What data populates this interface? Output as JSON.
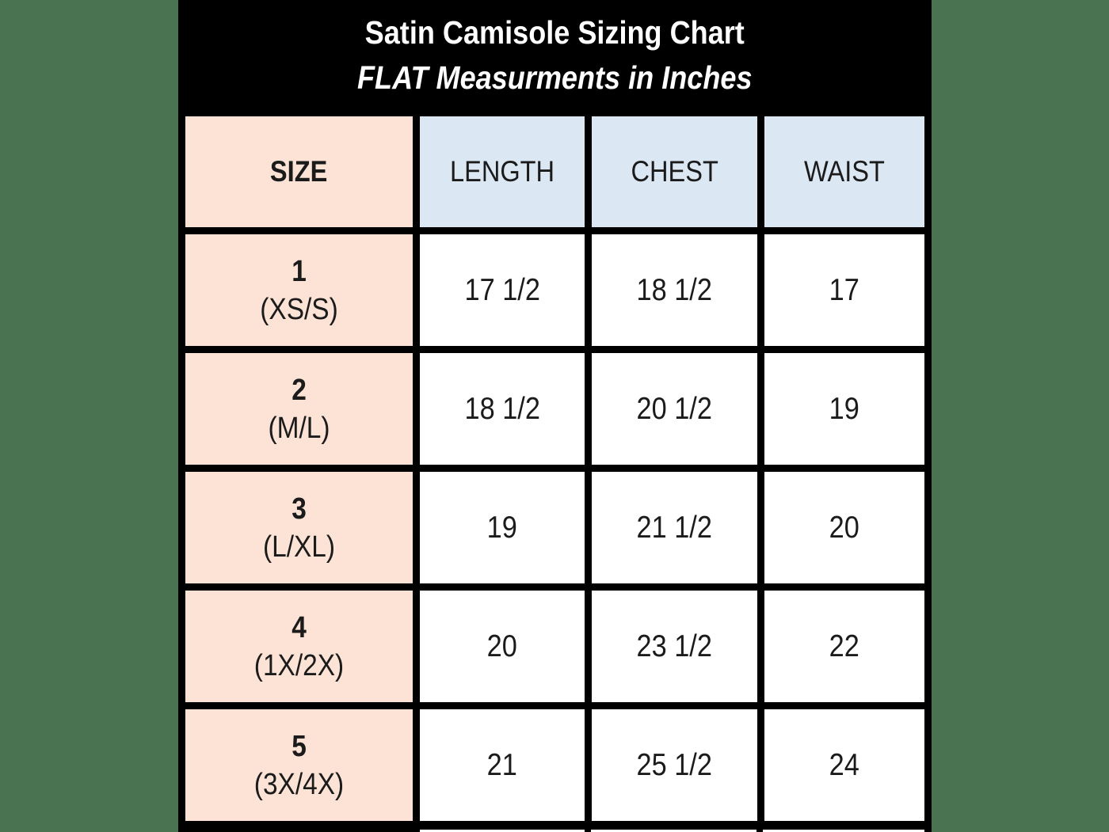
{
  "page": {
    "background_color": "#4a7351",
    "panel_background": "#000000",
    "title_text_color": "#ffffff",
    "cell_text_color": "#1b1b1b",
    "size_column_color": "#fce3d5",
    "header_column_color": "#dbe7f2",
    "value_cell_color": "#ffffff"
  },
  "chart_data": {
    "type": "table",
    "title": "Satin Camisole Sizing Chart",
    "subtitle": "FLAT Measurments in Inches",
    "columns": [
      "SIZE",
      "LENGTH",
      "CHEST",
      "WAIST"
    ],
    "rows": [
      {
        "size": "1",
        "size_label": "(XS/S)",
        "length": "17 1/2",
        "chest": "18 1/2",
        "waist": "17"
      },
      {
        "size": "2",
        "size_label": "(M/L)",
        "length": "18 1/2",
        "chest": "20 1/2",
        "waist": "19"
      },
      {
        "size": "3",
        "size_label": "(L/XL)",
        "length": "19",
        "chest": "21 1/2",
        "waist": "20"
      },
      {
        "size": "4",
        "size_label": "(1X/2X)",
        "length": "20",
        "chest": "23 1/2",
        "waist": "22"
      },
      {
        "size": "5",
        "size_label": "(3X/4X)",
        "length": "21",
        "chest": "25 1/2",
        "waist": "24"
      }
    ]
  }
}
